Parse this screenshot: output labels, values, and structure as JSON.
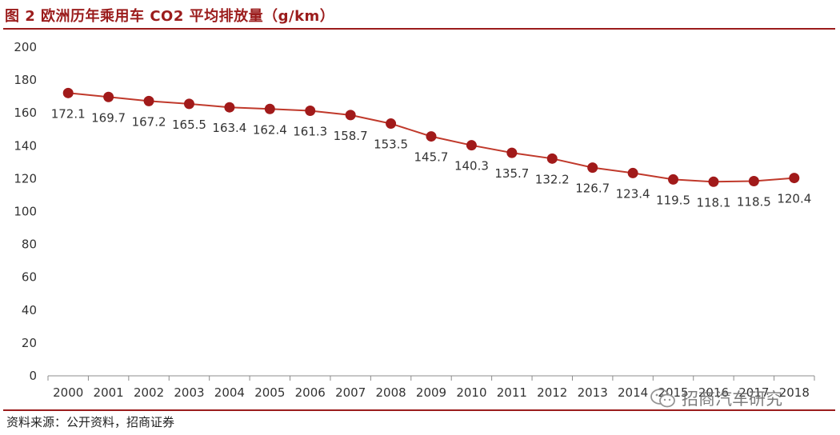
{
  "figure": {
    "title": "图 2 欧洲历年乘用车 CO2 平均排放量（g/km）",
    "source": "资料来源：公开资料，招商证券",
    "watermark": "招商汽车研究"
  },
  "colors": {
    "accent": "#9b1c1c",
    "line": "#c0392b",
    "marker": "#a11a1a",
    "axis": "#8c8c8c",
    "text": "#333333"
  },
  "chart_data": {
    "type": "line",
    "title": "欧洲历年乘用车 CO2 平均排放量（g/km）",
    "xlabel": "",
    "ylabel": "",
    "ylim": [
      0,
      200
    ],
    "yticks": [
      0,
      20,
      40,
      60,
      80,
      100,
      120,
      140,
      160,
      180,
      200
    ],
    "grid": false,
    "legend": "none",
    "categories": [
      "2000",
      "2001",
      "2002",
      "2003",
      "2004",
      "2005",
      "2006",
      "2007",
      "2008",
      "2009",
      "2010",
      "2011",
      "2012",
      "2013",
      "2014",
      "2015",
      "2016",
      "2017",
      "2018"
    ],
    "series": [
      {
        "name": "CO2 平均排放量",
        "values": [
          172.1,
          169.7,
          167.2,
          165.5,
          163.4,
          162.4,
          161.3,
          158.7,
          153.5,
          145.7,
          140.3,
          135.7,
          132.2,
          126.7,
          123.4,
          119.5,
          118.1,
          118.5,
          120.4
        ],
        "labels": [
          "172.1",
          "169.7",
          "167.2",
          "165.5",
          "163.4",
          "162.4",
          "161.3",
          "158.7",
          "153.5",
          "145.7",
          "140.3",
          "135.7",
          "132.2",
          "126.7",
          "123.4",
          "119.5",
          "118.1",
          "118.5",
          "120.4"
        ]
      }
    ]
  }
}
